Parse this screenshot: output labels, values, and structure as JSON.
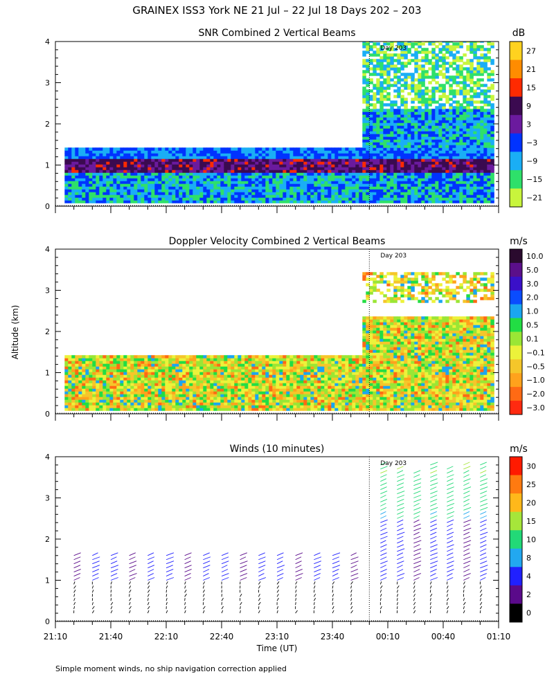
{
  "header": {
    "title": "GRAINEX ISS3 York NE  21 Jul – 22 Jul 18 Days 202 – 203",
    "footnote": "Simple moment winds, no ship navigation correction applied"
  },
  "axes": {
    "ylabel": "Altitude (km)",
    "xlabel": "Time (UT)",
    "x_ticks": [
      "21:10",
      "21:40",
      "22:10",
      "22:40",
      "23:10",
      "23:40",
      "00:10",
      "00:40",
      "01:10"
    ],
    "x_range_hours": [
      21.1667,
      25.1667
    ],
    "y_ticks": [
      "0",
      "1",
      "2",
      "3",
      "4"
    ],
    "y_range_km": [
      0,
      4
    ],
    "day_marker": "Day 203",
    "day_marker_time_hours": 24.0
  },
  "chart_data": [
    {
      "type": "heatmap",
      "title": "SNR Combined 2 Vertical Beams",
      "unit": "dB",
      "colorbar": {
        "labels": [
          "27",
          "21",
          "15",
          "9",
          "3",
          "−3",
          "−9",
          "−15",
          "−21"
        ],
        "colors": [
          "#ffd21f",
          "#ff8c00",
          "#ff2a00",
          "#3b0a50",
          "#6b1a9e",
          "#0033ff",
          "#1aaef5",
          "#2ee06a",
          "#c8f53c"
        ]
      },
      "coverage": {
        "before_day_top_km": 1.4,
        "after_day_top_km": 4.0
      }
    },
    {
      "type": "heatmap",
      "title": "Doppler Velocity Combined 2 Vertical Beams",
      "unit": "m/s",
      "colorbar": {
        "labels": [
          "10.0",
          "5.0",
          "3.0",
          "2.0",
          "1.0",
          "0.5",
          "0.1",
          "−0.1",
          "−0.5",
          "−1.0",
          "−2.0",
          "−3.0"
        ],
        "colors": [
          "#2a0a2e",
          "#5b0f8a",
          "#3a10c8",
          "#0a4cff",
          "#1aa6f0",
          "#22dd44",
          "#9ae635",
          "#ecf23a",
          "#f5c62a",
          "#ffa21c",
          "#ff6a14",
          "#ff2a10"
        ]
      },
      "coverage": {
        "before_day_top_km": 1.4,
        "after_day_top_km": 3.4
      }
    },
    {
      "type": "wind_barbs",
      "title": "Winds (10 minutes)",
      "unit": "m/s",
      "colorbar": {
        "labels": [
          "30",
          "25",
          "20",
          "15",
          "10",
          "8",
          "4",
          "2",
          "0"
        ],
        "colors": [
          "#ff1a00",
          "#ff7a10",
          "#ffb81a",
          "#a6e63a",
          "#22d977",
          "#22a8f0",
          "#2020ff",
          "#5a0a8a",
          "#000000"
        ]
      },
      "profile_times_hours": [
        21.333,
        21.5,
        21.667,
        21.833,
        22.0,
        22.167,
        22.333,
        22.5,
        22.667,
        22.833,
        23.0,
        23.167,
        23.333,
        23.5,
        23.667,
        23.833,
        24.1,
        24.25,
        24.4,
        24.55,
        24.7,
        24.85,
        25.0
      ]
    }
  ]
}
